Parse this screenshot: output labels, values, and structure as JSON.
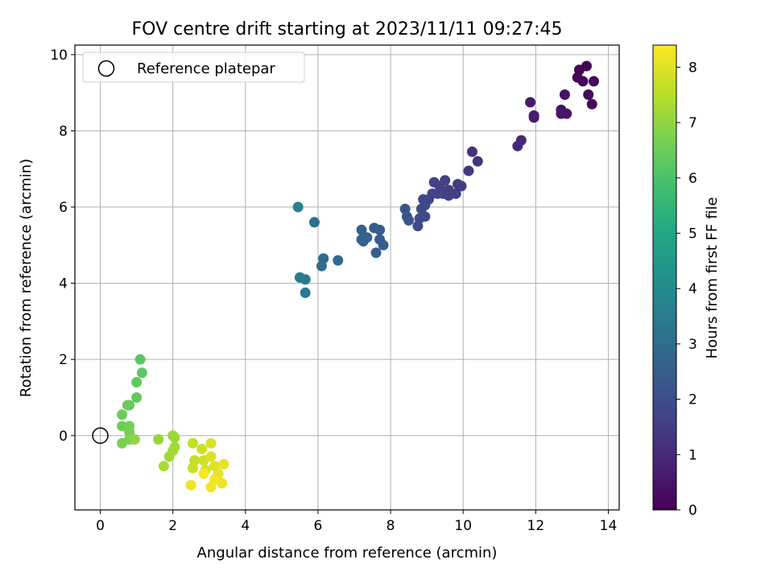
{
  "chart_data": {
    "type": "scatter",
    "title": "FOV centre drift starting at 2023/11/11 09:27:45",
    "xlabel": "Angular distance from reference (arcmin)",
    "ylabel": "Rotation from reference (arcmin)",
    "xlim": [
      -0.7,
      14.3
    ],
    "ylim": [
      -1.95,
      10.25
    ],
    "xticks": [
      0,
      2,
      4,
      6,
      8,
      10,
      12,
      14
    ],
    "yticks": [
      0,
      2,
      4,
      6,
      8,
      10
    ],
    "grid": true,
    "legend": {
      "placement": "upper-left",
      "entries": [
        "Reference platepar"
      ]
    },
    "reference_point": {
      "x": 0,
      "y": 0
    },
    "colorbar": {
      "label": "Hours from first FF file",
      "colormap": "viridis",
      "range": [
        0,
        8.4
      ],
      "ticks": [
        0,
        1,
        2,
        3,
        4,
        5,
        6,
        7,
        8
      ]
    },
    "series": [
      {
        "points": [
          [
            13.2,
            9.6,
            0.1
          ],
          [
            13.4,
            9.7,
            0.1
          ],
          [
            13.15,
            9.4,
            0.15
          ],
          [
            13.3,
            9.3,
            0.15
          ],
          [
            13.6,
            9.3,
            0.2
          ],
          [
            13.45,
            8.95,
            0.2
          ],
          [
            13.55,
            8.7,
            0.25
          ],
          [
            12.8,
            8.95,
            0.4
          ],
          [
            12.7,
            8.55,
            0.45
          ],
          [
            12.85,
            8.45,
            0.5
          ],
          [
            12.7,
            8.45,
            0.5
          ],
          [
            11.85,
            8.75,
            0.6
          ],
          [
            11.95,
            8.4,
            0.65
          ],
          [
            11.95,
            8.35,
            0.7
          ],
          [
            11.6,
            7.75,
            0.9
          ],
          [
            11.5,
            7.6,
            0.95
          ],
          [
            10.25,
            7.45,
            1.2
          ],
          [
            10.4,
            7.2,
            1.25
          ],
          [
            10.15,
            6.95,
            1.3
          ],
          [
            9.95,
            6.55,
            1.45
          ],
          [
            9.85,
            6.6,
            1.5
          ],
          [
            9.8,
            6.35,
            1.5
          ],
          [
            9.6,
            6.45,
            1.55
          ],
          [
            9.5,
            6.7,
            1.55
          ],
          [
            9.45,
            6.35,
            1.6
          ],
          [
            9.6,
            6.3,
            1.6
          ],
          [
            9.2,
            6.65,
            1.65
          ],
          [
            9.35,
            6.55,
            1.65
          ],
          [
            9.3,
            6.35,
            1.7
          ],
          [
            9.15,
            6.35,
            1.7
          ],
          [
            9.05,
            6.2,
            1.75
          ],
          [
            8.95,
            6.05,
            1.8
          ],
          [
            8.9,
            6.2,
            1.8
          ],
          [
            8.85,
            5.95,
            1.85
          ],
          [
            8.95,
            5.75,
            1.9
          ],
          [
            8.8,
            5.7,
            1.9
          ],
          [
            8.75,
            5.5,
            1.95
          ],
          [
            8.4,
            5.95,
            2.1
          ],
          [
            8.45,
            5.75,
            2.15
          ],
          [
            8.5,
            5.65,
            2.2
          ],
          [
            7.7,
            5.4,
            2.4
          ],
          [
            7.55,
            5.45,
            2.45
          ],
          [
            7.7,
            5.15,
            2.5
          ],
          [
            7.8,
            5.0,
            2.5
          ],
          [
            7.6,
            4.8,
            2.55
          ],
          [
            7.35,
            5.2,
            2.6
          ],
          [
            7.2,
            5.4,
            2.65
          ],
          [
            7.2,
            5.15,
            2.65
          ],
          [
            7.25,
            5.1,
            2.7
          ],
          [
            6.55,
            4.6,
            2.9
          ],
          [
            6.15,
            4.65,
            2.95
          ],
          [
            6.1,
            4.45,
            3.0
          ],
          [
            5.9,
            5.6,
            3.15
          ],
          [
            5.65,
            3.75,
            3.4
          ],
          [
            5.65,
            4.1,
            3.45
          ],
          [
            5.5,
            4.15,
            3.5
          ],
          [
            5.45,
            6.0,
            3.7
          ],
          [
            1.1,
            2.0,
            6.2
          ],
          [
            1.15,
            1.65,
            6.25
          ],
          [
            1.0,
            1.4,
            6.3
          ],
          [
            1.0,
            1.0,
            6.35
          ],
          [
            0.8,
            0.8,
            6.4
          ],
          [
            0.75,
            0.8,
            6.45
          ],
          [
            0.6,
            0.55,
            6.5
          ],
          [
            0.6,
            0.25,
            6.55
          ],
          [
            0.8,
            0.25,
            6.6
          ],
          [
            0.8,
            0.1,
            6.65
          ],
          [
            0.6,
            -0.2,
            6.7
          ],
          [
            0.8,
            -0.1,
            6.75
          ],
          [
            0.95,
            -0.1,
            7.0
          ],
          [
            1.6,
            -0.1,
            7.05
          ],
          [
            2.0,
            0.0,
            7.15
          ],
          [
            2.05,
            -0.05,
            7.15
          ],
          [
            2.05,
            -0.3,
            7.2
          ],
          [
            2.0,
            -0.4,
            7.2
          ],
          [
            1.9,
            -0.55,
            7.25
          ],
          [
            1.75,
            -0.8,
            7.3
          ],
          [
            2.55,
            -0.2,
            7.6
          ],
          [
            2.6,
            -0.65,
            7.65
          ],
          [
            2.55,
            -0.85,
            7.7
          ],
          [
            2.8,
            -0.35,
            7.75
          ],
          [
            2.85,
            -0.65,
            7.8
          ],
          [
            2.9,
            -0.9,
            7.85
          ],
          [
            3.05,
            -0.2,
            7.9
          ],
          [
            3.05,
            -0.55,
            7.95
          ],
          [
            3.15,
            -0.8,
            8.0
          ],
          [
            3.25,
            -1.0,
            8.05
          ],
          [
            3.4,
            -0.75,
            8.1
          ],
          [
            3.35,
            -1.25,
            8.15
          ],
          [
            2.5,
            -1.3,
            8.2
          ],
          [
            3.05,
            -1.35,
            8.25
          ],
          [
            3.15,
            -1.15,
            8.3
          ],
          [
            2.85,
            -1.0,
            8.35
          ]
        ]
      }
    ]
  }
}
